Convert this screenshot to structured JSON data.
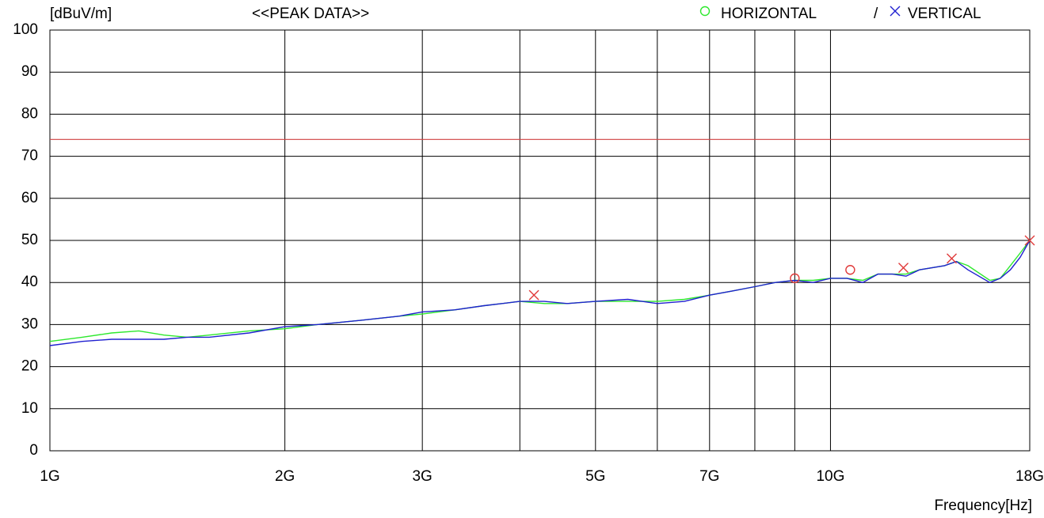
{
  "chart_data": {
    "type": "line",
    "title": "<<PEAK DATA>>",
    "y_label": "[dBuV/m]",
    "x_label": "Frequency[Hz]",
    "xscale": "log",
    "xlim": [
      1000000000,
      18000000000
    ],
    "ylim": [
      0,
      100
    ],
    "yticks": [
      0,
      10,
      20,
      30,
      40,
      50,
      60,
      70,
      80,
      90,
      100
    ],
    "xticks": [
      {
        "value": 1000000000,
        "label": "1G"
      },
      {
        "value": 2000000000,
        "label": "2G"
      },
      {
        "value": 3000000000,
        "label": "3G"
      },
      {
        "value": 5000000000,
        "label": "5G"
      },
      {
        "value": 7000000000,
        "label": "7G"
      },
      {
        "value": 10000000000,
        "label": "10G"
      },
      {
        "value": 18000000000,
        "label": "18G"
      }
    ],
    "xminor": [
      4000000000,
      6000000000,
      8000000000,
      9000000000
    ],
    "grid": true,
    "legend_separator": "/",
    "limit_line": {
      "value": 74,
      "color": "#d04040"
    },
    "peak_color": "#e03a3a",
    "x": [
      1000000000,
      1100000000,
      1200000000,
      1300000000,
      1400000000,
      1500000000,
      1600000000,
      1800000000,
      2000000000,
      2200000000,
      2500000000,
      2800000000,
      3000000000,
      3300000000,
      3600000000,
      4000000000,
      4300000000,
      4600000000,
      5000000000,
      5500000000,
      6000000000,
      6500000000,
      7000000000,
      7500000000,
      8000000000,
      8500000000,
      9000000000,
      9500000000,
      10000000000,
      10500000000,
      11000000000,
      11500000000,
      12000000000,
      12500000000,
      13000000000,
      14000000000,
      14500000000,
      15000000000,
      16000000000,
      16500000000,
      17000000000,
      17500000000,
      18000000000
    ],
    "series": [
      {
        "name": "HORIZONTAL",
        "color": "#2ee82e",
        "marker": "circle",
        "values": [
          26,
          27,
          28,
          28.5,
          27.5,
          27,
          27.5,
          28.5,
          29,
          30,
          31,
          32,
          32.5,
          33.5,
          34.5,
          35.5,
          35,
          35,
          35.5,
          35.5,
          35.5,
          36,
          37,
          38,
          39,
          40,
          40.5,
          40.5,
          41,
          41,
          40.5,
          42,
          42,
          42,
          43,
          44,
          45,
          44,
          40.5,
          41,
          44,
          47,
          50
        ],
        "peaks_x": [
          9000000000,
          10600000000
        ],
        "peaks_values": [
          41,
          43
        ]
      },
      {
        "name": "VERTICAL",
        "color": "#2020d0",
        "marker": "x",
        "values": [
          25,
          26,
          26.5,
          26.5,
          26.5,
          27,
          27,
          28,
          29.5,
          30,
          31,
          32,
          33,
          33.5,
          34.5,
          35.5,
          35.5,
          35,
          35.5,
          36,
          35,
          35.5,
          37,
          38,
          39,
          40,
          40.5,
          40,
          41,
          41,
          40,
          42,
          42,
          41.5,
          43,
          44,
          45,
          43,
          40,
          41,
          43,
          46,
          50
        ],
        "peaks_x": [
          4170000000,
          12400000000,
          14300000000,
          18000000000
        ],
        "peaks_values": [
          37,
          43.5,
          45.7,
          50
        ]
      }
    ]
  }
}
